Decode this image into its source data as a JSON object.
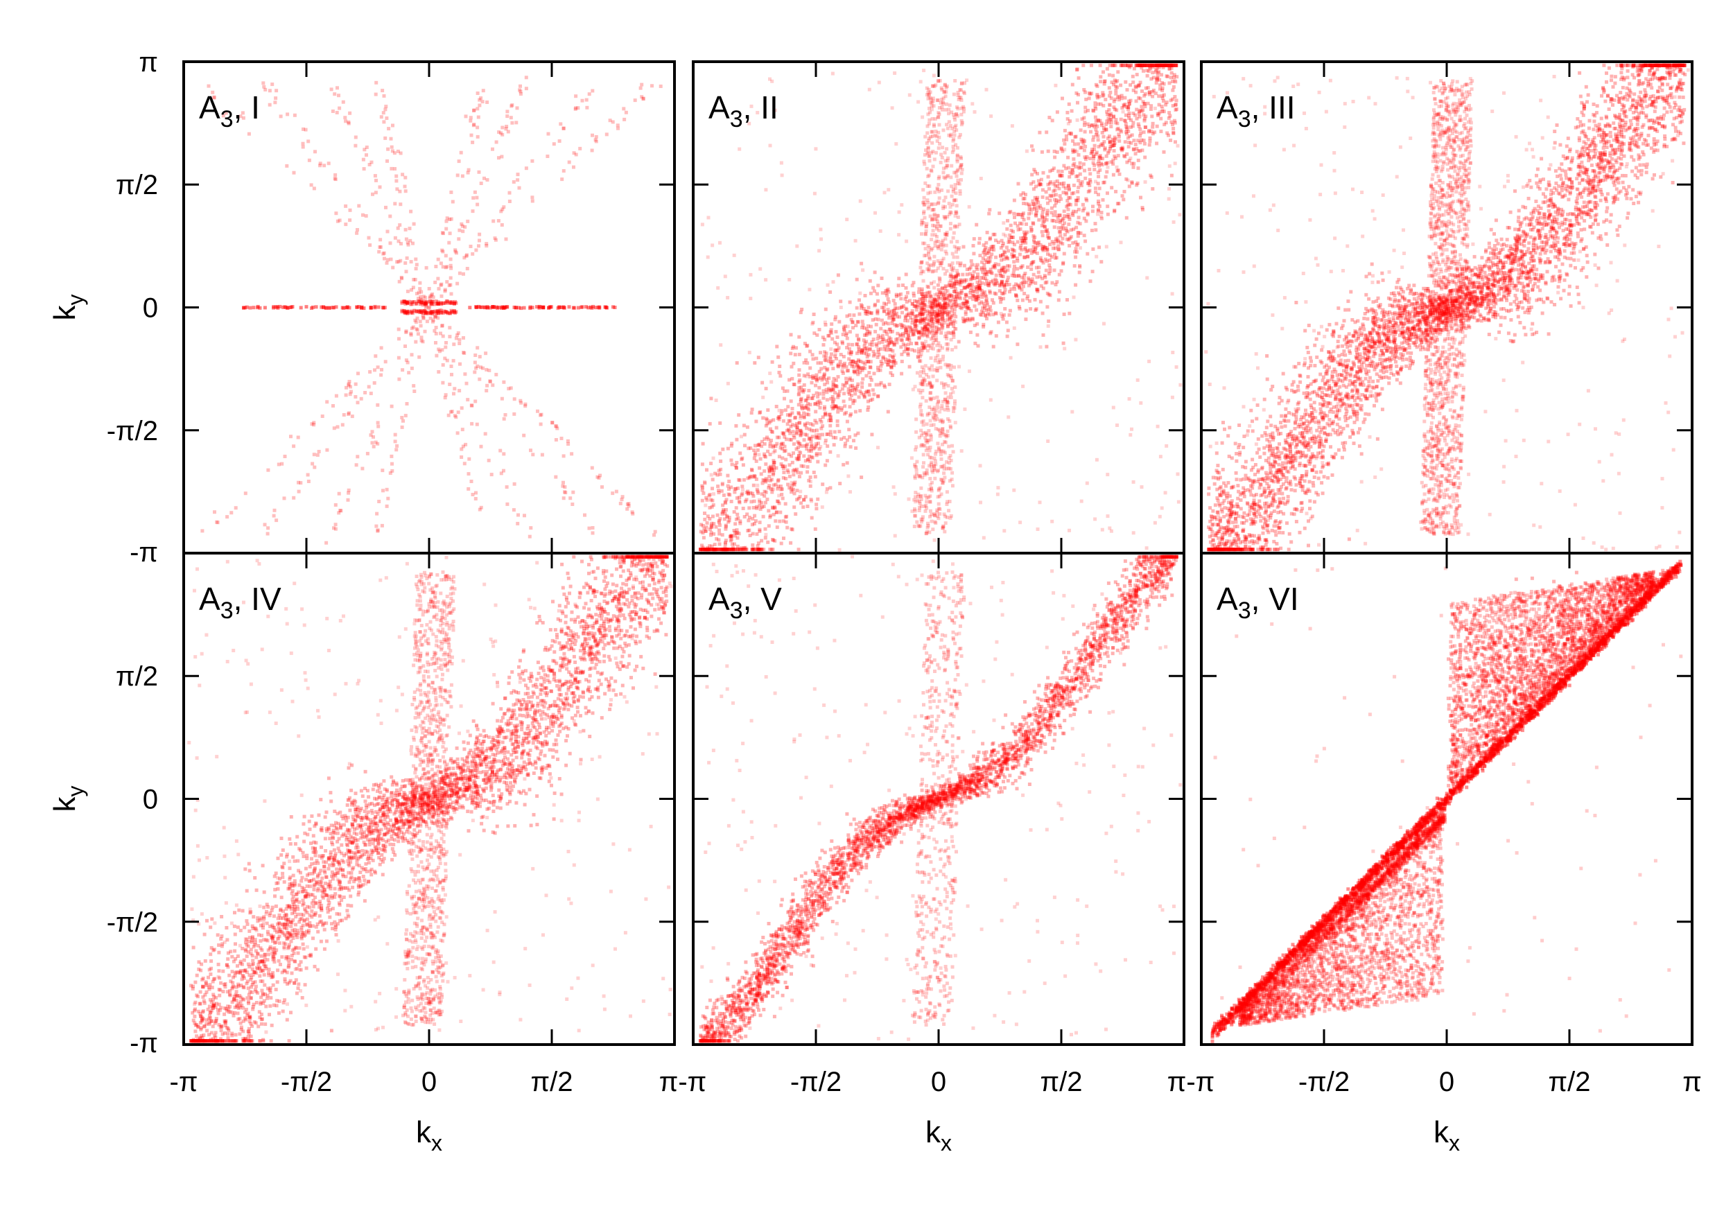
{
  "figure": {
    "marker_color": "#ff0000",
    "frame_color": "#000000",
    "background": "#ffffff"
  },
  "chart_data": [
    {
      "type": "scatter",
      "panel_label": "A",
      "panel_label_sub": "3",
      "panel_label_suffix": ", I",
      "xlabel": "k",
      "xlabel_sub": "x",
      "ylabel": "k",
      "ylabel_sub": "y",
      "xlim": [
        -3.14159,
        3.14159
      ],
      "ylim": [
        -3.14159,
        3.14159
      ],
      "pattern": "star"
    },
    {
      "type": "scatter",
      "panel_label": "A",
      "panel_label_sub": "3",
      "panel_label_suffix": ", II",
      "xlabel": "k",
      "xlabel_sub": "x",
      "ylabel": "k",
      "ylabel_sub": "y",
      "xlim": [
        -3.14159,
        3.14159
      ],
      "ylim": [
        -3.14159,
        3.14159
      ],
      "pattern": "s-broad"
    },
    {
      "type": "scatter",
      "panel_label": "A",
      "panel_label_sub": "3",
      "panel_label_suffix": ", III",
      "xlabel": "k",
      "xlabel_sub": "x",
      "ylabel": "k",
      "ylabel_sub": "y",
      "xlim": [
        -3.14159,
        3.14159
      ],
      "ylim": [
        -3.14159,
        3.14159
      ],
      "pattern": "s-wide"
    },
    {
      "type": "scatter",
      "panel_label": "A",
      "panel_label_sub": "3",
      "panel_label_suffix": ", IV",
      "xlabel": "k",
      "xlabel_sub": "x",
      "ylabel": "k",
      "ylabel_sub": "y",
      "xlim": [
        -3.14159,
        3.14159
      ],
      "ylim": [
        -3.14159,
        3.14159
      ],
      "pattern": "s-fan"
    },
    {
      "type": "scatter",
      "panel_label": "A",
      "panel_label_sub": "3",
      "panel_label_suffix": ", V",
      "xlabel": "k",
      "xlabel_sub": "x",
      "ylabel": "k",
      "ylabel_sub": "y",
      "xlim": [
        -3.14159,
        3.14159
      ],
      "ylim": [
        -3.14159,
        3.14159
      ],
      "pattern": "s-narrow"
    },
    {
      "type": "scatter",
      "panel_label": "A",
      "panel_label_sub": "3",
      "panel_label_suffix": ", VI",
      "xlabel": "k",
      "xlabel_sub": "x",
      "ylabel": "k",
      "ylabel_sub": "y",
      "xlim": [
        -3.14159,
        3.14159
      ],
      "ylim": [
        -3.14159,
        3.14159
      ],
      "pattern": "wedge"
    }
  ],
  "axes": {
    "x_ticks": [
      {
        "value": -3.14159,
        "label": "-π"
      },
      {
        "value": -1.5708,
        "label": "-π/2"
      },
      {
        "value": 0,
        "label": "0"
      },
      {
        "value": 1.5708,
        "label": "π/2"
      },
      {
        "value": 3.14159,
        "label": "π"
      }
    ],
    "y_ticks": [
      {
        "value": -3.14159,
        "label": "-π"
      },
      {
        "value": -1.5708,
        "label": "-π/2"
      },
      {
        "value": 0,
        "label": "0"
      },
      {
        "value": 1.5708,
        "label": "π/2"
      },
      {
        "value": 3.14159,
        "label": "π"
      }
    ],
    "x_edge_labels": [
      "-π",
      "π-π",
      "π-π",
      "π"
    ],
    "y_edge_labels": [
      "π",
      "-π",
      "-π"
    ]
  }
}
